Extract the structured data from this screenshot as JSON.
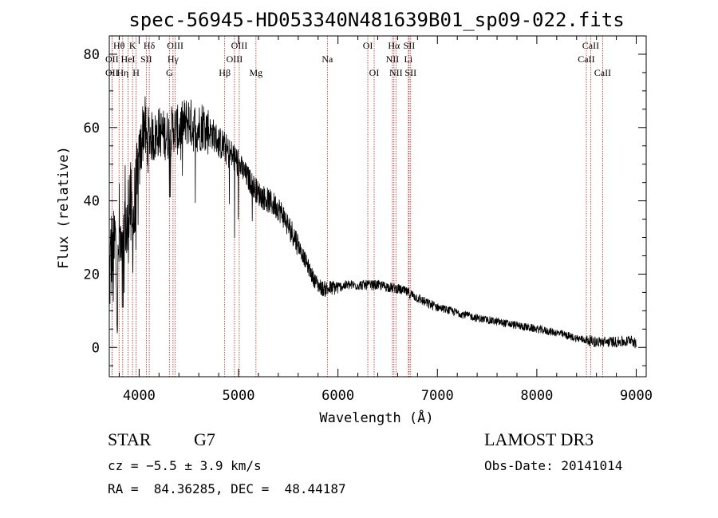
{
  "chart_data": {
    "type": "line",
    "title": "spec-56945-HD053340N481639B01_sp09-022.fits",
    "xlabel": "Wavelength (Å)",
    "ylabel": "Flux (relative)",
    "xlim": [
      3700,
      9100
    ],
    "ylim": [
      -8,
      85
    ],
    "x_ticks": [
      4000,
      5000,
      6000,
      7000,
      8000,
      9000
    ],
    "y_ticks": [
      0,
      20,
      40,
      60,
      80
    ],
    "grid": false,
    "line_color": "#000000",
    "spectrum_anchors": [
      [
        3700,
        18
      ],
      [
        3720,
        26
      ],
      [
        3740,
        22
      ],
      [
        3760,
        30
      ],
      [
        3780,
        10
      ],
      [
        3800,
        32
      ],
      [
        3830,
        18
      ],
      [
        3860,
        38
      ],
      [
        3880,
        28
      ],
      [
        3900,
        42
      ],
      [
        3930,
        32
      ],
      [
        3960,
        38
      ],
      [
        3990,
        45
      ],
      [
        4000,
        50
      ],
      [
        4020,
        55
      ],
      [
        4050,
        62
      ],
      [
        4080,
        55
      ],
      [
        4100,
        58
      ],
      [
        4150,
        57
      ],
      [
        4200,
        59
      ],
      [
        4250,
        58
      ],
      [
        4300,
        58
      ],
      [
        4350,
        60
      ],
      [
        4400,
        59
      ],
      [
        4450,
        61
      ],
      [
        4500,
        62
      ],
      [
        4550,
        60
      ],
      [
        4600,
        60
      ],
      [
        4650,
        61
      ],
      [
        4700,
        59
      ],
      [
        4750,
        58
      ],
      [
        4800,
        56
      ],
      [
        4850,
        55
      ],
      [
        4900,
        53
      ],
      [
        4950,
        52
      ],
      [
        5000,
        50
      ],
      [
        5050,
        48
      ],
      [
        5100,
        46
      ],
      [
        5150,
        44
      ],
      [
        5200,
        42
      ],
      [
        5250,
        41
      ],
      [
        5300,
        40
      ],
      [
        5350,
        39
      ],
      [
        5400,
        38
      ],
      [
        5450,
        36
      ],
      [
        5500,
        33
      ],
      [
        5550,
        31
      ],
      [
        5600,
        28
      ],
      [
        5650,
        25
      ],
      [
        5700,
        22
      ],
      [
        5750,
        19
      ],
      [
        5800,
        17
      ],
      [
        5850,
        16
      ],
      [
        5900,
        16
      ],
      [
        6000,
        16.5
      ],
      [
        6100,
        17
      ],
      [
        6200,
        17
      ],
      [
        6300,
        17
      ],
      [
        6400,
        17
      ],
      [
        6500,
        16.5
      ],
      [
        6600,
        16
      ],
      [
        6700,
        15
      ],
      [
        6800,
        13.5
      ],
      [
        6900,
        12
      ],
      [
        7000,
        11
      ],
      [
        7200,
        9.5
      ],
      [
        7400,
        8
      ],
      [
        7600,
        7
      ],
      [
        7800,
        6
      ],
      [
        8000,
        5
      ],
      [
        8200,
        4
      ],
      [
        8400,
        2.5
      ],
      [
        8600,
        1.5
      ],
      [
        8800,
        1.5
      ],
      [
        8900,
        1.5
      ],
      [
        8950,
        2.5
      ],
      [
        9000,
        0.5
      ]
    ],
    "emission_lines": [
      {
        "label": "Hθ",
        "wavelength": 3798,
        "row": 1
      },
      {
        "label": "K",
        "wavelength": 3934,
        "row": 1
      },
      {
        "label": "Hδ",
        "wavelength": 4102,
        "row": 1
      },
      {
        "label": "OIII",
        "wavelength": 4363,
        "row": 1
      },
      {
        "label": "OIII",
        "wavelength": 5007,
        "row": 1
      },
      {
        "label": "OI",
        "wavelength": 6300,
        "row": 1
      },
      {
        "label": "Hα",
        "wavelength": 6563,
        "row": 1
      },
      {
        "label": "SII",
        "wavelength": 6716,
        "row": 1
      },
      {
        "label": "CaII",
        "wavelength": 8542,
        "row": 1
      },
      {
        "label": "OII",
        "wavelength": 3727,
        "row": 2
      },
      {
        "label": "HeI",
        "wavelength": 3889,
        "row": 2
      },
      {
        "label": "SII",
        "wavelength": 4072,
        "row": 2
      },
      {
        "label": "Hγ",
        "wavelength": 4341,
        "row": 2
      },
      {
        "label": "OIII",
        "wavelength": 4959,
        "row": 2
      },
      {
        "label": "Na",
        "wavelength": 5893,
        "row": 2
      },
      {
        "label": "NII",
        "wavelength": 6548,
        "row": 2
      },
      {
        "label": "Li",
        "wavelength": 6708,
        "row": 2
      },
      {
        "label": "CaII",
        "wavelength": 8498,
        "row": 2
      },
      {
        "label": "OII",
        "wavelength": 3727,
        "row": 3
      },
      {
        "label": "Hη",
        "wavelength": 3835,
        "row": 3
      },
      {
        "label": "H",
        "wavelength": 3969,
        "row": 3
      },
      {
        "label": "G",
        "wavelength": 4304,
        "row": 3
      },
      {
        "label": "Hβ",
        "wavelength": 4861,
        "row": 3
      },
      {
        "label": "Mg",
        "wavelength": 5175,
        "row": 3
      },
      {
        "label": "OI",
        "wavelength": 6364,
        "row": 3
      },
      {
        "label": "NII",
        "wavelength": 6583,
        "row": 3
      },
      {
        "label": "SII",
        "wavelength": 6731,
        "row": 3
      },
      {
        "label": "CaII",
        "wavelength": 8662,
        "row": 3
      }
    ],
    "line_marker_color": "#b22222"
  },
  "info": {
    "class": "STAR",
    "subclass": "G7",
    "survey": "LAMOST DR3",
    "cz": "cz = −5.5 ± 3.9 km/s",
    "obs_date": "Obs-Date: 20141014",
    "radec": "RA =  84.36285, DEC =  48.44187"
  }
}
